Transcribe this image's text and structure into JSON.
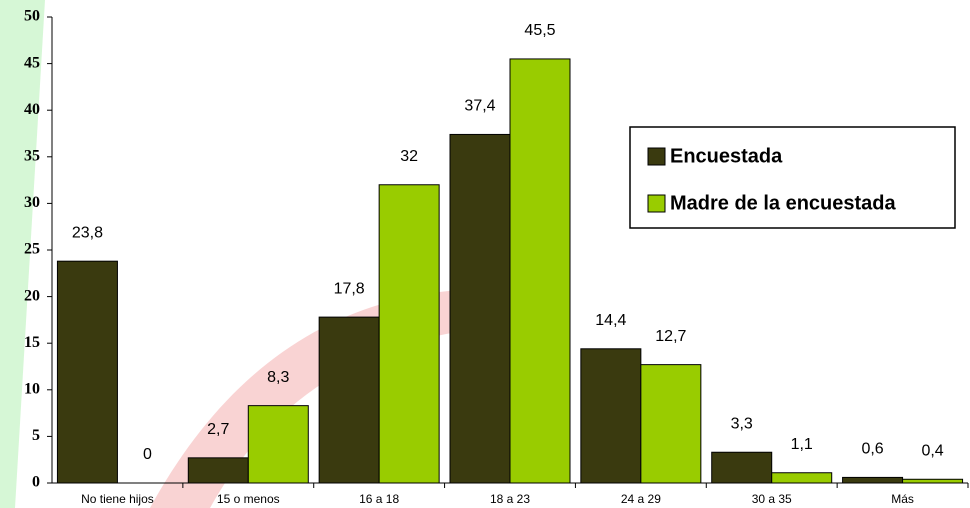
{
  "chart_data": {
    "type": "bar",
    "categories": [
      "No tiene hijos",
      "15 o menos",
      "16 a 18",
      "18 a 23",
      "24 a 29",
      "30 a 35",
      "Más"
    ],
    "series": [
      {
        "name": "Encuestada",
        "color": "#3a3a0f",
        "values": [
          23.8,
          2.7,
          17.8,
          37.4,
          14.4,
          3.3,
          0.6
        ],
        "value_labels": [
          "23,8",
          "2,7",
          "17,8",
          "37,4",
          "14,4",
          "3,3",
          "0,6"
        ]
      },
      {
        "name": "Madre de la encuestada",
        "color": "#99cc00",
        "values": [
          0,
          8.3,
          32,
          45.5,
          12.7,
          1.1,
          0.4
        ],
        "value_labels": [
          "0",
          "8,3",
          "32",
          "45,5",
          "12,7",
          "1,1",
          "0,4"
        ]
      }
    ],
    "ylim": [
      0,
      50
    ],
    "yticks": [
      0,
      5,
      10,
      15,
      20,
      25,
      30,
      35,
      40,
      45,
      50
    ],
    "legend": "right"
  }
}
